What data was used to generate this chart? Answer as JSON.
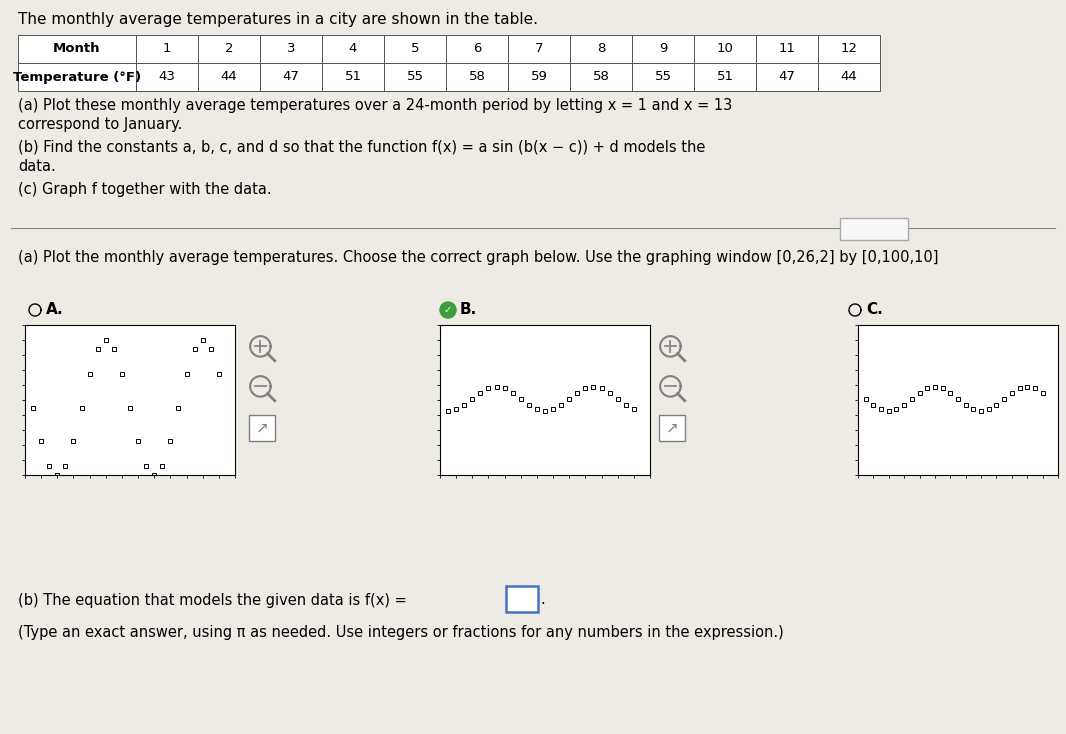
{
  "title_text": "The monthly average temperatures in a city are shown in the table.",
  "table_months": [
    1,
    2,
    3,
    4,
    5,
    6,
    7,
    8,
    9,
    10,
    11,
    12
  ],
  "table_temps": [
    43,
    44,
    47,
    51,
    55,
    58,
    59,
    58,
    55,
    51,
    47,
    44
  ],
  "part_a_text1": "(a) Plot these monthly average temperatures over a 24-month period by letting x = 1 and x = 13",
  "part_a_text2": "correspond to January.",
  "part_b_text1": "(b) Find the constants a, b, c, and d so that the function f(x) = a sin (b(x − c)) + d models the",
  "part_b_text2": "data.",
  "part_c_text": "(c) Graph f together with the data.",
  "part_a2_text": "(a) Plot the monthly average temperatures. Choose the correct graph below. Use the graphing window [0,26,2] by [0,100,10]",
  "label_A": "A.",
  "label_B": "B.",
  "label_C": "C.",
  "part_b2_text": "(b) The equation that models the given data is f(x) =",
  "part_b3_text": "(Type an exact answer, using π as needed. Use integers or fractions for any numbers in the expression.)",
  "bg_color": "#eeebe5",
  "correct_answer": "B",
  "graph_A_type": "arcs_low",
  "graph_B_type": "correct",
  "graph_C_type": "sinusoidal_high"
}
